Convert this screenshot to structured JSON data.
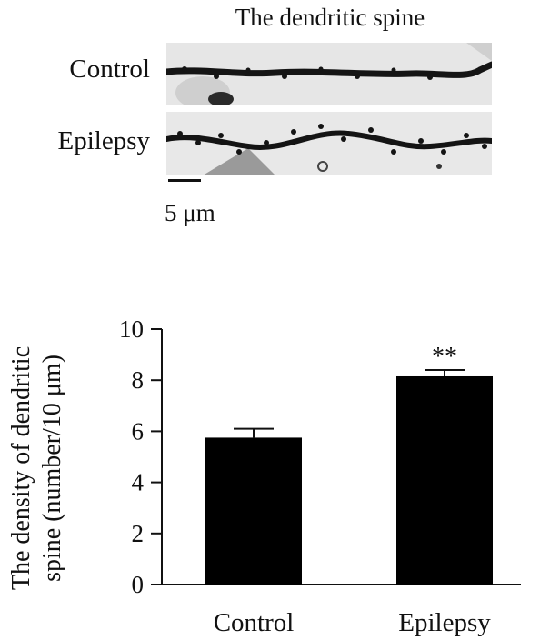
{
  "micrograph": {
    "title": "The dendritic spine",
    "rows": [
      "Control",
      "Epilepsy"
    ],
    "scale_bar_label": "5 μm"
  },
  "chart_data": {
    "type": "bar",
    "categories": [
      "Control",
      "Epilepsy"
    ],
    "values": [
      5.75,
      8.15
    ],
    "errors": [
      0.35,
      0.25
    ],
    "annotations": [
      "",
      "**"
    ],
    "title": "",
    "xlabel": "",
    "ylabel_lines": [
      "The density of dendritic",
      "spine (number/10 μm)"
    ],
    "ylim": [
      0,
      10
    ],
    "yticks": [
      0,
      2,
      4,
      6,
      8,
      10
    ],
    "grid": false,
    "bar_color": "#000000"
  }
}
